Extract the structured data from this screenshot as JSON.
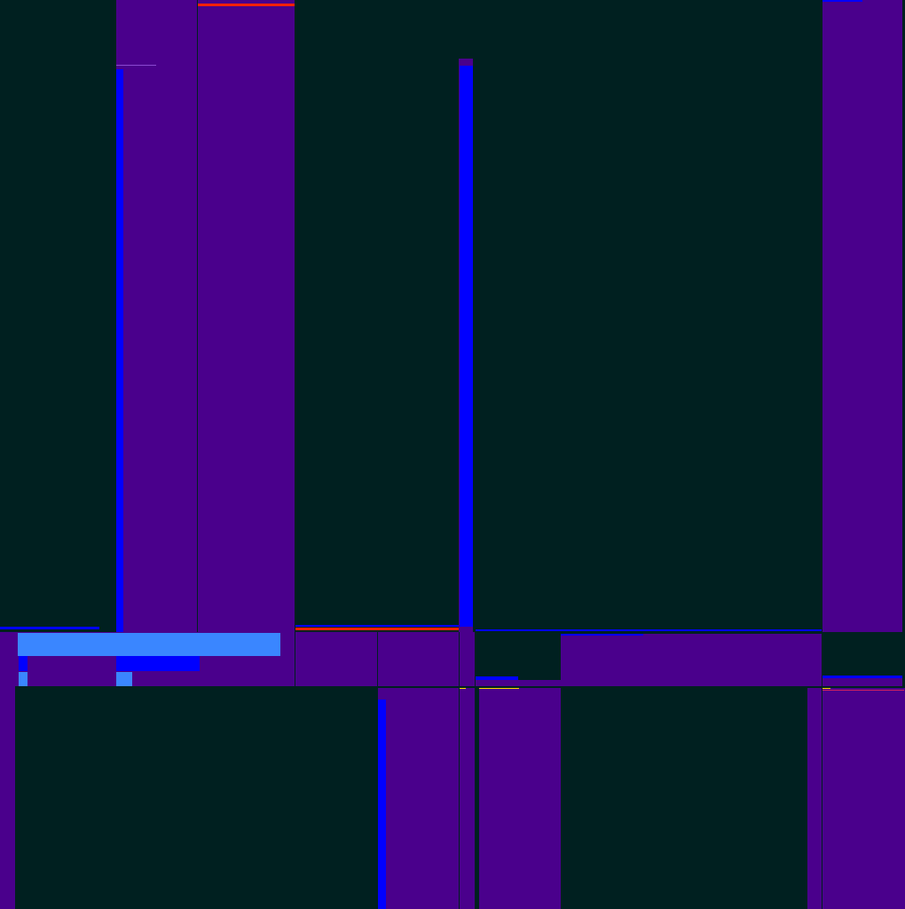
{
  "colors": {
    "background": "#002020",
    "panel": "#4a008c",
    "accent": "#0000ff",
    "highlight": "#3a86ff",
    "alert": "#ff2000",
    "marker": "#ffd700"
  }
}
